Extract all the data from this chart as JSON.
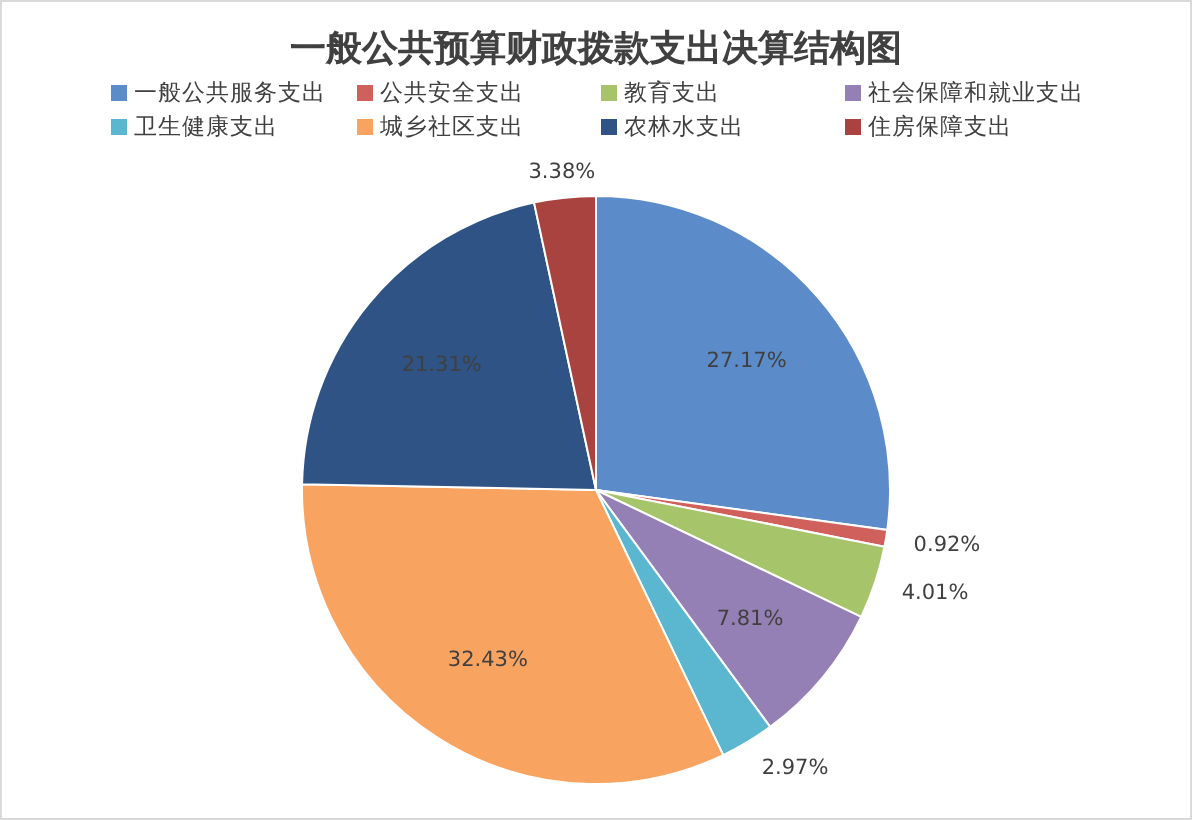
{
  "chart_data": {
    "type": "pie",
    "title": "一般公共预算财政拨款支出决算结构图",
    "categories": [
      "一般公共服务支出",
      "公共安全支出",
      "教育支出",
      "社会保障和就业支出",
      "卫生健康支出",
      "城乡社区支出",
      "农林水支出",
      "住房保障支出"
    ],
    "values": [
      27.17,
      0.92,
      4.01,
      7.81,
      2.97,
      32.43,
      21.31,
      3.38
    ],
    "value_labels": [
      "27.17%",
      "0.92%",
      "4.01%",
      "7.81%",
      "2.97%",
      "32.43%",
      "21.31%",
      "3.38%"
    ],
    "colors": [
      "#5b8cc9",
      "#d0605c",
      "#a6c46a",
      "#9580b5",
      "#5ab7cf",
      "#f9a361",
      "#2e5384",
      "#a8433f"
    ],
    "legend": "top"
  }
}
